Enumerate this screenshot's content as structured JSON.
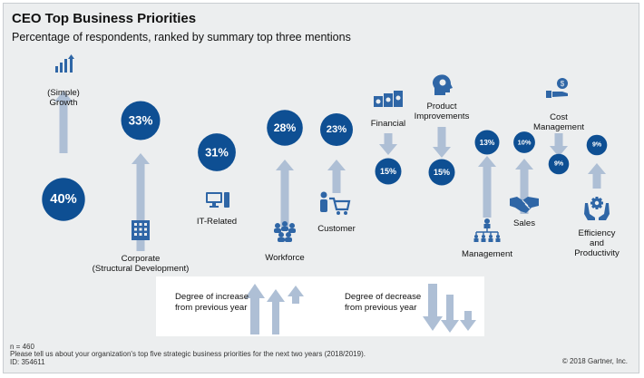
{
  "title": "CEO Top Business Priorities",
  "subtitle": "Percentage of respondents, ranked by summary top three mentions",
  "colors": {
    "bubble": "#0e4f93",
    "arrow": "#aebfd5",
    "icon": "#2f66a6",
    "background": "#eceeef"
  },
  "chart_data": {
    "type": "bubble",
    "title": "CEO Top Business Priorities",
    "subtitle": "Percentage of respondents, ranked by summary top three mentions",
    "unit": "%",
    "categories": [
      "(Simple) Growth",
      "Corporate (Structural Development)",
      "IT-Related",
      "Workforce",
      "Customer",
      "Financial",
      "Product Improvements",
      "Management",
      "Sales",
      "Cost Management",
      "Efficiency and Productivity"
    ],
    "values": [
      40,
      33,
      31,
      28,
      23,
      15,
      15,
      13,
      10,
      9,
      9
    ],
    "value_labels": [
      "40%",
      "33%",
      "31%",
      "28%",
      "23%",
      "15%",
      "15%",
      "13%",
      "10%",
      "9%",
      "9%"
    ],
    "change": [
      "increase",
      "increase",
      "increase",
      "increase",
      "increase",
      "decrease",
      "decrease",
      "increase",
      "increase",
      "decrease",
      "increase"
    ],
    "labels": [
      "(Simple)\nGrowth",
      "Corporate\n(Structural Development)",
      "IT-Related",
      "Workforce",
      "Customer",
      "Financial",
      "Product\nImprovements",
      "Management",
      "Sales",
      "Cost\nManagement",
      "Efficiency and\nProductivity"
    ],
    "icons": [
      "growth-chart-icon",
      "building-icon",
      "computer-icon",
      "people-group-icon",
      "shopping-cart-icon",
      "money-stack-icon",
      "lightbulb-head-icon",
      "org-chart-icon",
      "handshake-icon",
      "hand-coin-icon",
      "hand-gear-icon"
    ]
  },
  "legend": {
    "increase_label": "Degree of increase\nfrom previous year",
    "decrease_label": "Degree of decrease\nfrom previous year"
  },
  "footer": {
    "n": "n = 460",
    "question": "Please tell us about your organization's top five strategic business priorities for the next two years (2018/2019).",
    "id": "ID: 354611",
    "copyright": "© 2018 Gartner, Inc."
  }
}
